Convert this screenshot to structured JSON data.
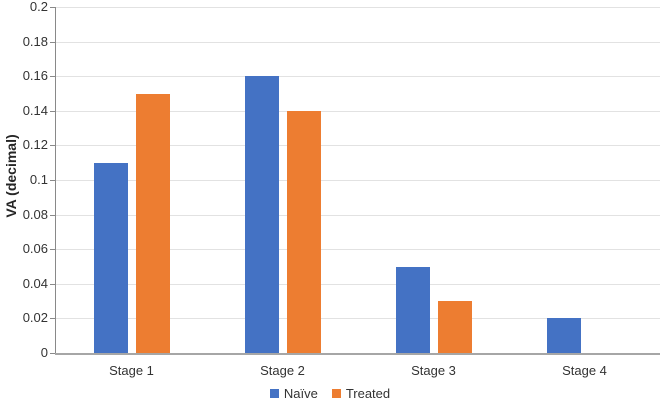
{
  "chart_data": {
    "type": "bar",
    "title": "",
    "xlabel": "",
    "ylabel": "VA (decimal)",
    "categories": [
      "Stage 1",
      "Stage 2",
      "Stage 3",
      "Stage 4"
    ],
    "series": [
      {
        "name": "Naïve",
        "color": "#4472C4",
        "values": [
          0.11,
          0.16,
          0.05,
          0.02
        ]
      },
      {
        "name": "Treated",
        "color": "#ED7D31",
        "values": [
          0.15,
          0.14,
          0.03,
          0
        ]
      }
    ],
    "ylim": [
      0,
      0.2
    ],
    "ytick_step": 0.02,
    "ytick_labels": [
      "0",
      "0.02",
      "0.04",
      "0.06",
      "0.08",
      "0.1",
      "0.12",
      "0.14",
      "0.16",
      "0.18",
      "0.2"
    ],
    "grid": "horizontal",
    "legend_position": "bottom"
  },
  "colors": {
    "gridline": "#e2e2e2",
    "axis_line": "#a6a6a6",
    "text": "#333333"
  }
}
